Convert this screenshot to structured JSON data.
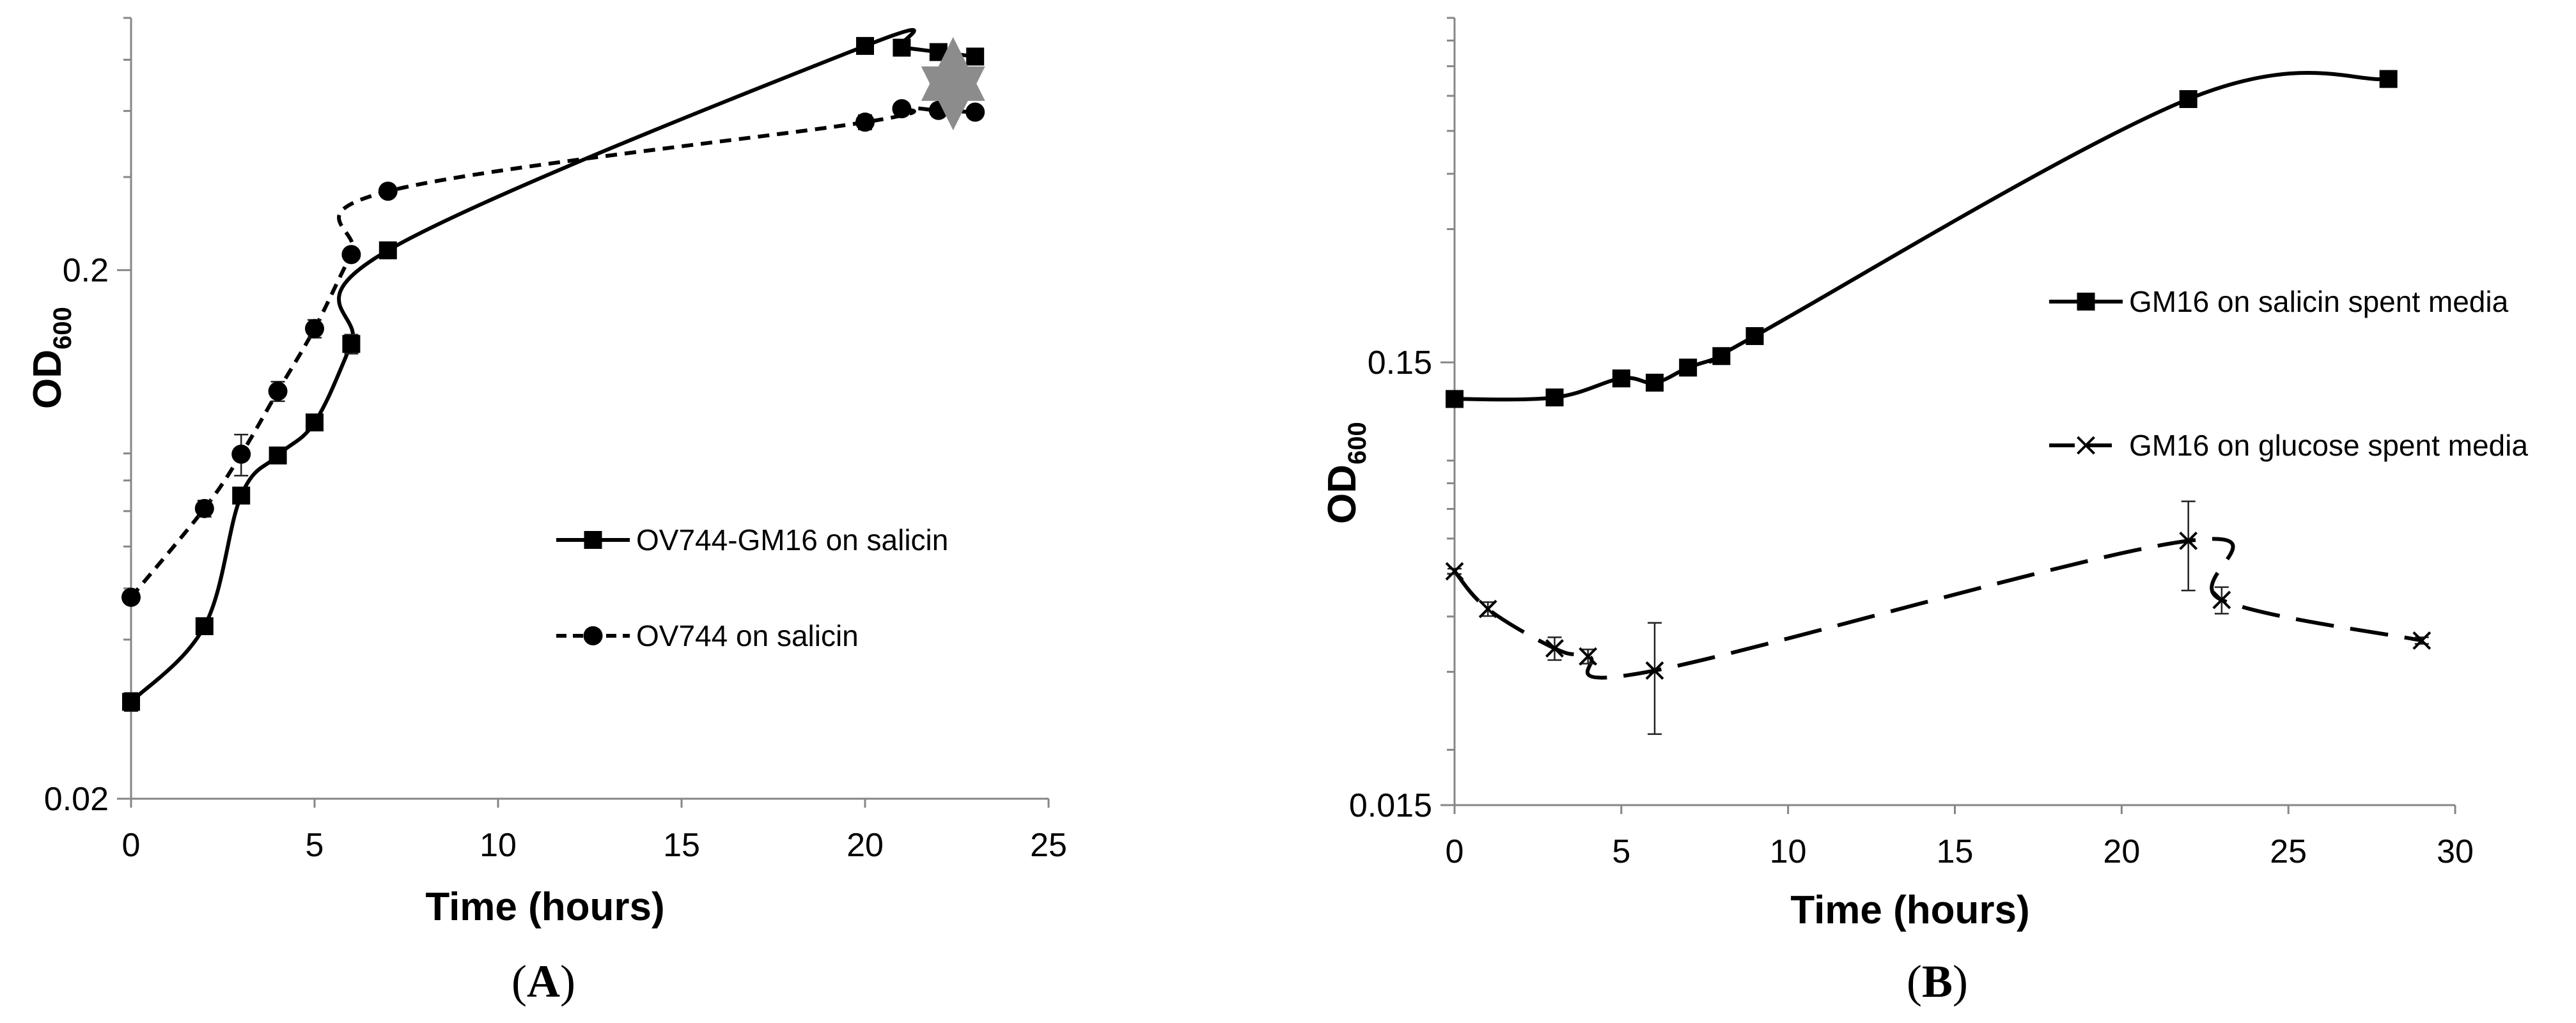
{
  "chart_data": [
    {
      "type": "line",
      "panel_label": "(A)",
      "xlabel": "Time (hours)",
      "ylabel": "OD",
      "ylabel_sub": "600",
      "xlim": [
        0,
        25
      ],
      "ylim": [
        0.02,
        0.6
      ],
      "yscale": "log",
      "x_ticks": [
        0,
        5,
        10,
        15,
        20,
        25
      ],
      "x_tick_labels": [
        "0",
        "5",
        "10",
        "15",
        "20",
        "25"
      ],
      "y_ticks": [
        0.02,
        0.2
      ],
      "y_tick_labels": [
        "0.02",
        "0.2"
      ],
      "legend_position": "center-right",
      "series": [
        {
          "name": "OV744-GM16 on salicin",
          "marker": "square",
          "dash": "solid",
          "x": [
            0,
            2,
            3,
            4,
            5,
            6,
            7,
            20,
            21,
            22,
            23
          ],
          "y": [
            0.0305,
            0.0424,
            0.0749,
            0.0892,
            0.103,
            0.145,
            0.218,
            0.531,
            0.527,
            0.517,
            0.507
          ],
          "err": [
            0.0012,
            0.0013,
            0.002,
            0.0015,
            0.003,
            0.006,
            0.005,
            0.008,
            0.007,
            0.006,
            0.006
          ]
        },
        {
          "name": "OV744 on salicin",
          "marker": "circle",
          "dash": "dashed",
          "x": [
            0,
            2,
            3,
            4,
            5,
            6,
            7,
            20,
            21,
            22,
            23
          ],
          "y": [
            0.0481,
            0.0708,
            0.0897,
            0.118,
            0.155,
            0.214,
            0.282,
            0.381,
            0.404,
            0.401,
            0.398
          ],
          "err": [
            0.001,
            0.0025,
            0.008,
            0.005,
            0.006,
            0.005,
            0.007,
            0.012,
            0.008,
            0.006,
            0.006
          ]
        }
      ],
      "annotations": [
        {
          "type": "double-arrow",
          "x": 22.4,
          "y_from": 0.505,
          "y_to": 0.402,
          "color": "#8c8c8c"
        }
      ]
    },
    {
      "type": "line",
      "panel_label": "(B)",
      "xlabel": "Time (hours)",
      "ylabel": "OD",
      "ylabel_sub": "600",
      "xlim": [
        0,
        30
      ],
      "ylim": [
        0.015,
        0.9
      ],
      "yscale": "log",
      "x_ticks": [
        0,
        5,
        10,
        15,
        20,
        25,
        30
      ],
      "x_tick_labels": [
        "0",
        "5",
        "10",
        "15",
        "20",
        "25",
        "30"
      ],
      "y_ticks": [
        0.015,
        0.15
      ],
      "y_tick_labels": [
        "0.015",
        "0.15"
      ],
      "legend_position": "right",
      "series": [
        {
          "name": "GM16 on salicin spent media",
          "marker": "square",
          "dash": "solid",
          "smooth": true,
          "x": [
            0,
            3,
            5,
            6,
            7,
            8,
            9,
            22,
            28
          ],
          "y": [
            0.124,
            0.125,
            0.138,
            0.135,
            0.146,
            0.155,
            0.172,
            0.59,
            0.655
          ],
          "err": [
            0.003,
            0.003,
            0.004,
            0.004,
            0.004,
            0.004,
            0.005,
            0.015,
            0.015
          ]
        },
        {
          "name": "GM16 on glucose spent media",
          "marker": "x",
          "dash": "long-dashed",
          "smooth": true,
          "x": [
            0,
            1,
            3,
            4,
            6,
            22,
            23,
            29
          ],
          "y": [
            0.0506,
            0.0416,
            0.0339,
            0.0325,
            0.0302,
            0.0593,
            0.0436,
            0.0353
          ],
          "err": [
            0.0007,
            0.0015,
            0.002,
            0.0012,
            0.0085,
            0.0135,
            0.003,
            0.0006
          ]
        }
      ]
    }
  ]
}
